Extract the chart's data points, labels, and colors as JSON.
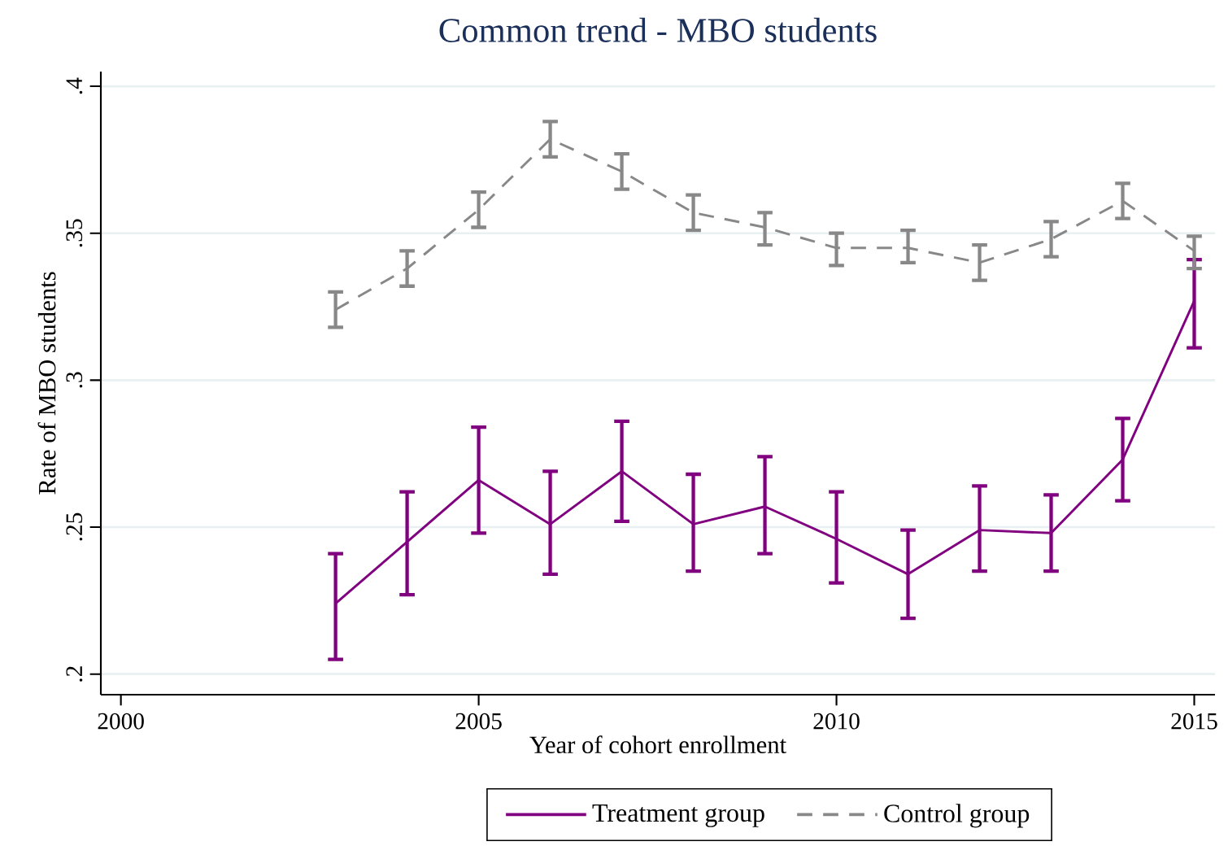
{
  "chart_data": {
    "type": "line",
    "title": "Common trend - MBO students",
    "xlabel": "Year of cohort enrollment",
    "ylabel": "Rate of MBO students",
    "x": [
      2003,
      2004,
      2005,
      2006,
      2007,
      2008,
      2009,
      2010,
      2011,
      2012,
      2013,
      2014,
      2015
    ],
    "series": [
      {
        "name": "Treatment group",
        "color": "#800080",
        "line_style": "solid",
        "values": [
          0.224,
          0.245,
          0.266,
          0.251,
          0.269,
          0.251,
          0.257,
          0.246,
          0.234,
          0.249,
          0.248,
          0.273,
          0.327
        ],
        "errors": [
          [
            0.205,
            0.241
          ],
          [
            0.227,
            0.262
          ],
          [
            0.248,
            0.284
          ],
          [
            0.234,
            0.269
          ],
          [
            0.252,
            0.286
          ],
          [
            0.235,
            0.268
          ],
          [
            0.241,
            0.274
          ],
          [
            0.231,
            0.262
          ],
          [
            0.219,
            0.249
          ],
          [
            0.235,
            0.264
          ],
          [
            0.235,
            0.261
          ],
          [
            0.259,
            0.287
          ],
          [
            0.311,
            0.341
          ]
        ]
      },
      {
        "name": "Control group",
        "color": "#888888",
        "line_style": "dashed",
        "values": [
          0.324,
          0.338,
          0.358,
          0.382,
          0.371,
          0.357,
          0.352,
          0.345,
          0.345,
          0.34,
          0.348,
          0.361,
          0.344
        ],
        "errors": [
          [
            0.318,
            0.33
          ],
          [
            0.332,
            0.344
          ],
          [
            0.352,
            0.364
          ],
          [
            0.376,
            0.388
          ],
          [
            0.365,
            0.377
          ],
          [
            0.351,
            0.363
          ],
          [
            0.346,
            0.357
          ],
          [
            0.339,
            0.35
          ],
          [
            0.34,
            0.351
          ],
          [
            0.334,
            0.346
          ],
          [
            0.342,
            0.354
          ],
          [
            0.355,
            0.367
          ],
          [
            0.338,
            0.349
          ]
        ]
      }
    ],
    "xlim": [
      1999.72,
      2015.29
    ],
    "xticks": [
      2000,
      2005,
      2010,
      2015
    ],
    "ylim": [
      0.193,
      0.405
    ],
    "yticks": [
      {
        "value": 0.2,
        "label": ".2"
      },
      {
        "value": 0.25,
        "label": ".25"
      },
      {
        "value": 0.3,
        "label": ".3"
      },
      {
        "value": 0.35,
        "label": ".35"
      },
      {
        "value": 0.4,
        "label": ".4"
      }
    ],
    "grid": "y",
    "legend": "bottom",
    "marker": "none"
  }
}
